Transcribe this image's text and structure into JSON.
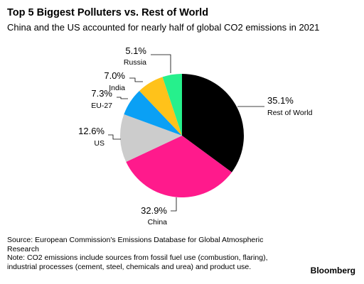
{
  "chart_data": {
    "type": "pie",
    "title": "Top 5 Biggest Polluters vs. Rest of World",
    "subtitle": "China and the US accounted for nearly half of global CO2 emissions in 2021",
    "slices": [
      {
        "label": "Rest of World",
        "value": 35.1,
        "display": "35.1%",
        "color": "#000000"
      },
      {
        "label": "China",
        "value": 32.9,
        "display": "32.9%",
        "color": "#ff1a8c"
      },
      {
        "label": "US",
        "value": 12.6,
        "display": "12.6%",
        "color": "#cccccc"
      },
      {
        "label": "EU-27",
        "value": 7.3,
        "display": "7.3%",
        "color": "#0aa0f5"
      },
      {
        "label": "India",
        "value": 7.0,
        "display": "7.0%",
        "color": "#ffc21a"
      },
      {
        "label": "Russia",
        "value": 5.1,
        "display": "5.1%",
        "color": "#26f08c"
      }
    ]
  },
  "footer": {
    "source": "Source: European Commission's Emissions Database for Global Atmospheric Research",
    "note": "Note: CO2 emissions include sources from fossil fuel use (combustion, flaring), industrial processes (cement, steel, chemicals and urea) and product use."
  },
  "brand": "Bloomberg"
}
